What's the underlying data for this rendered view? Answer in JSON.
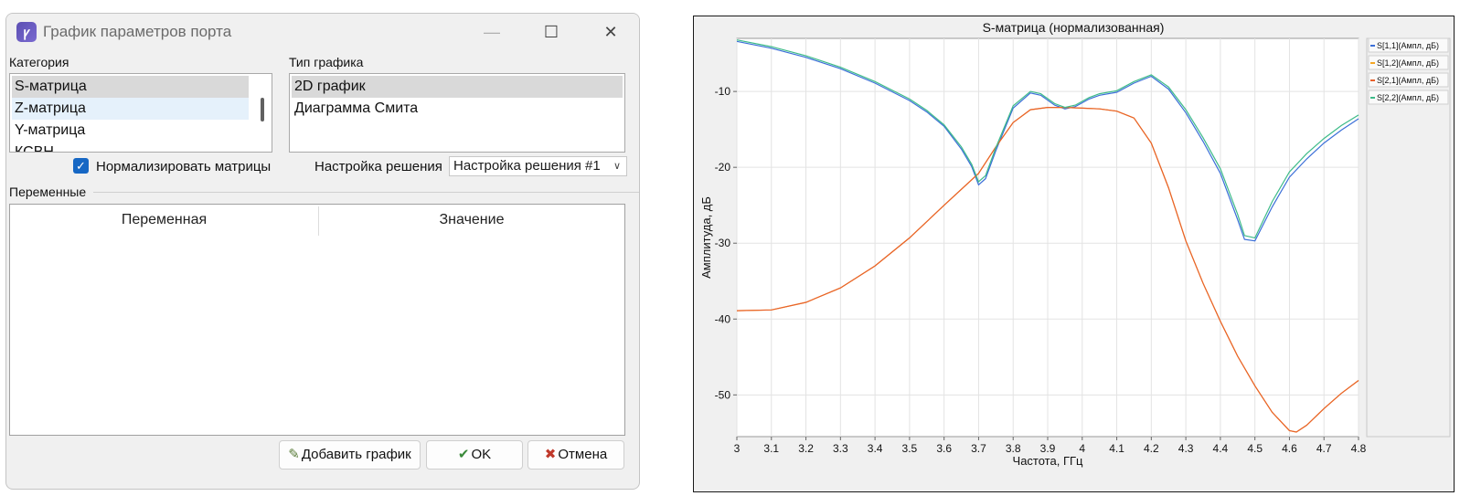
{
  "dialog": {
    "title": "График параметров порта",
    "category_label": "Категория",
    "categories": [
      "S-матрица",
      "Z-матрица",
      "Y-матрица",
      "КСВН"
    ],
    "plot_type_label": "Тип графика",
    "plot_types": [
      "2D график",
      "Диаграмма Смита"
    ],
    "normalize_label": "Нормализировать матрицы",
    "normalize_checked": true,
    "solution_label": "Настройка решения",
    "solution_value": "Настройка решения #1",
    "variables_label": "Переменные",
    "columns": [
      "Переменная",
      "Значение"
    ],
    "buttons": {
      "add": "Добавить график",
      "ok": "OK",
      "cancel": "Отмена"
    },
    "icons": {
      "min": "—",
      "max": "☐",
      "close": "✕",
      "check": "✓",
      "arrow": "∨"
    }
  },
  "chart_data": {
    "type": "line",
    "title": "S-матрица (нормализованная)",
    "xlabel": "Частота, ГГц",
    "ylabel": "Амплитуда, дБ",
    "xlim": [
      3.0,
      4.8
    ],
    "ylim": [
      -55.5,
      -3.0
    ],
    "xticks": [
      3.0,
      3.1,
      3.2,
      3.3,
      3.4,
      3.5,
      3.6,
      3.7,
      3.8,
      3.9,
      4.0,
      4.1,
      4.2,
      4.3,
      4.4,
      4.5,
      4.6,
      4.7,
      4.8
    ],
    "xtick_labels": [
      "3",
      "3.1",
      "3.2",
      "3.3",
      "3.4",
      "3.5",
      "3.6",
      "3.7",
      "3.8",
      "3.9",
      "4",
      "4.1",
      "4.2",
      "4.3",
      "4.4",
      "4.5",
      "4.6",
      "4.7",
      "4.8"
    ],
    "yticks": [
      -10,
      -20,
      -30,
      -40,
      -50
    ],
    "ytick_labels": [
      "-10",
      "-20",
      "-30",
      "-40",
      "-50"
    ],
    "grid": true,
    "legend_position": "right",
    "series": [
      {
        "name": "S[1,1](Ампл, дБ)",
        "color": "#3b6fd8",
        "x": [
          3.0,
          3.1,
          3.2,
          3.3,
          3.4,
          3.5,
          3.55,
          3.6,
          3.65,
          3.68,
          3.7,
          3.72,
          3.75,
          3.8,
          3.85,
          3.88,
          3.92,
          3.95,
          3.98,
          4.02,
          4.05,
          4.1,
          4.15,
          4.2,
          4.25,
          4.3,
          4.35,
          4.4,
          4.45,
          4.47,
          4.5,
          4.55,
          4.6,
          4.65,
          4.7,
          4.75,
          4.8
        ],
        "y": [
          -3.4,
          -4.3,
          -5.5,
          -7.0,
          -8.9,
          -11.2,
          -12.7,
          -14.6,
          -17.6,
          -19.9,
          -22.3,
          -21.5,
          -17.8,
          -12.2,
          -10.2,
          -10.5,
          -11.8,
          -12.3,
          -12.0,
          -11.0,
          -10.5,
          -10.1,
          -8.9,
          -8.0,
          -9.7,
          -12.8,
          -16.6,
          -20.8,
          -26.9,
          -29.5,
          -29.7,
          -25.2,
          -21.3,
          -18.9,
          -16.8,
          -15.1,
          -13.6
        ]
      },
      {
        "name": "S[1,2](Ампл, дБ)",
        "color": "#f5a623",
        "x": [
          3.0,
          3.1,
          3.2,
          3.3,
          3.4,
          3.5,
          3.6,
          3.7,
          3.75,
          3.8,
          3.85,
          3.9,
          3.95,
          4.0,
          4.05,
          4.1,
          4.15,
          4.2,
          4.25,
          4.3,
          4.35,
          4.4,
          4.45,
          4.5,
          4.55,
          4.6,
          4.62,
          4.65,
          4.7,
          4.75,
          4.8
        ],
        "y": [
          -38.9,
          -38.8,
          -37.8,
          -35.9,
          -33.0,
          -29.3,
          -25.0,
          -20.8,
          -17.3,
          -14.1,
          -12.4,
          -12.1,
          -12.1,
          -12.2,
          -12.3,
          -12.6,
          -13.5,
          -16.8,
          -22.7,
          -29.7,
          -35.3,
          -40.3,
          -44.9,
          -48.8,
          -52.3,
          -54.7,
          -54.9,
          -54.0,
          -51.8,
          -49.8,
          -48.1
        ]
      },
      {
        "name": "S[2,1](Ампл, дБ)",
        "color": "#e8622c",
        "x": [
          3.0,
          3.1,
          3.2,
          3.3,
          3.4,
          3.5,
          3.6,
          3.7,
          3.75,
          3.8,
          3.85,
          3.9,
          3.95,
          4.0,
          4.05,
          4.1,
          4.15,
          4.2,
          4.25,
          4.3,
          4.35,
          4.4,
          4.45,
          4.5,
          4.55,
          4.6,
          4.62,
          4.65,
          4.7,
          4.75,
          4.8
        ],
        "y": [
          -38.9,
          -38.8,
          -37.8,
          -35.9,
          -33.0,
          -29.3,
          -25.0,
          -20.8,
          -17.3,
          -14.1,
          -12.4,
          -12.1,
          -12.1,
          -12.2,
          -12.3,
          -12.6,
          -13.5,
          -16.8,
          -22.7,
          -29.7,
          -35.3,
          -40.3,
          -44.9,
          -48.8,
          -52.3,
          -54.7,
          -54.9,
          -54.0,
          -51.8,
          -49.8,
          -48.1
        ]
      },
      {
        "name": "S[2,2](Ампл, дБ)",
        "color": "#3dbb88",
        "x": [
          3.0,
          3.1,
          3.2,
          3.3,
          3.4,
          3.5,
          3.55,
          3.6,
          3.65,
          3.68,
          3.7,
          3.72,
          3.75,
          3.8,
          3.85,
          3.88,
          3.92,
          3.95,
          3.98,
          4.02,
          4.05,
          4.1,
          4.15,
          4.2,
          4.25,
          4.3,
          4.35,
          4.4,
          4.45,
          4.47,
          4.5,
          4.55,
          4.6,
          4.65,
          4.7,
          4.75,
          4.8
        ],
        "y": [
          -3.2,
          -4.1,
          -5.3,
          -6.8,
          -8.7,
          -11.0,
          -12.5,
          -14.4,
          -17.3,
          -19.6,
          -21.9,
          -21.1,
          -17.4,
          -11.9,
          -10.0,
          -10.3,
          -11.6,
          -12.1,
          -11.8,
          -10.8,
          -10.3,
          -9.9,
          -8.7,
          -7.8,
          -9.4,
          -12.4,
          -16.1,
          -20.2,
          -26.2,
          -29.0,
          -29.3,
          -24.5,
          -20.6,
          -18.2,
          -16.2,
          -14.5,
          -13.1
        ]
      }
    ]
  }
}
